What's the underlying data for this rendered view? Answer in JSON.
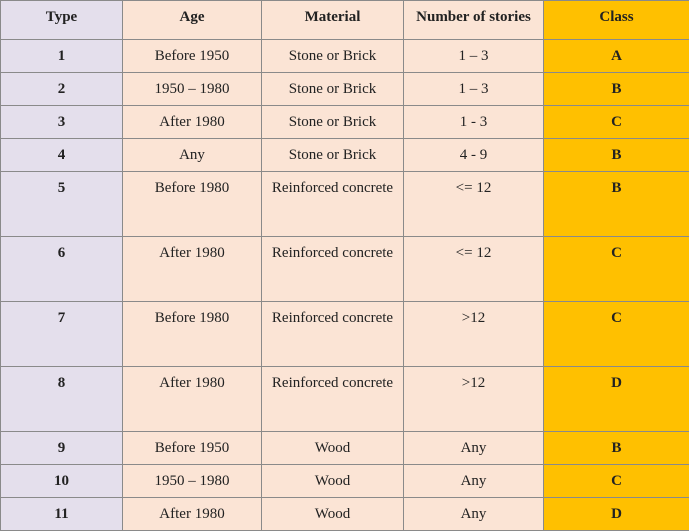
{
  "headers": {
    "type": "Type",
    "age": "Age",
    "material": "Material",
    "stories": "Number of stories",
    "class": "Class"
  },
  "rows": [
    {
      "type": "1",
      "age": "Before 1950",
      "material": "Stone or Brick",
      "stories": "1 – 3",
      "class": "A"
    },
    {
      "type": "2",
      "age": "1950 – 1980",
      "material": "Stone or Brick",
      "stories": "1 – 3",
      "class": "B"
    },
    {
      "type": "3",
      "age": "After 1980",
      "material": "Stone or Brick",
      "stories": "1 - 3",
      "class": "C"
    },
    {
      "type": "4",
      "age": "Any",
      "material": "Stone or Brick",
      "stories": "4 - 9",
      "class": "B"
    },
    {
      "type": "5",
      "age": "Before 1980",
      "material": "Reinforced concrete",
      "stories": "<= 12",
      "class": "B"
    },
    {
      "type": "6",
      "age": "After 1980",
      "material": "Reinforced concrete",
      "stories": "<= 12",
      "class": "C"
    },
    {
      "type": "7",
      "age": "Before 1980",
      "material": "Reinforced concrete",
      "stories": ">12",
      "class": "C"
    },
    {
      "type": "8",
      "age": "After 1980",
      "material": "Reinforced concrete",
      "stories": ">12",
      "class": "D"
    },
    {
      "type": "9",
      "age": "Before 1950",
      "material": "Wood",
      "stories": "Any",
      "class": "B"
    },
    {
      "type": "10",
      "age": "1950 – 1980",
      "material": "Wood",
      "stories": "Any",
      "class": "C"
    },
    {
      "type": "11",
      "age": "After 1980",
      "material": "Wood",
      "stories": "Any",
      "class": "D"
    }
  ],
  "colors": {
    "type_column": "#e4dfec",
    "data_columns": "#fbe4d5",
    "class_column": "#ffc000"
  }
}
